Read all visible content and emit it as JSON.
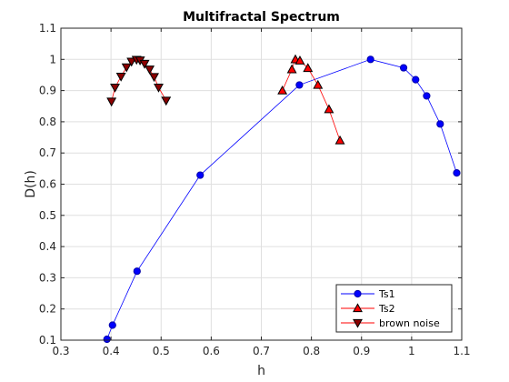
{
  "chart_data": {
    "type": "line",
    "title": "Multifractal Spectrum",
    "xlabel": "h",
    "ylabel": "D(h)",
    "xlim": [
      0.3,
      1.1
    ],
    "ylim": [
      0.1,
      1.1
    ],
    "xticks": [
      0.3,
      0.4,
      0.5,
      0.6,
      0.7,
      0.8,
      0.9,
      1.0,
      1.1
    ],
    "xtick_labels": [
      "0.3",
      "0.4",
      "0.5",
      "0.6",
      "0.7",
      "0.8",
      "0.9",
      "1",
      "1.1"
    ],
    "yticks": [
      0.1,
      0.2,
      0.3,
      0.4,
      0.5,
      0.6,
      0.7,
      0.8,
      0.9,
      1.0,
      1.1
    ],
    "ytick_labels": [
      "0.1",
      "0.2",
      "0.3",
      "0.4",
      "0.5",
      "0.6",
      "0.7",
      "0.8",
      "0.9",
      "1",
      "1.1"
    ],
    "grid": true,
    "legend_position": "bottom-right",
    "series": [
      {
        "name": "Ts1",
        "color": "#0000ff",
        "marker": "circle",
        "x": [
          0.392,
          0.403,
          0.452,
          0.578,
          0.776,
          0.918,
          0.984,
          1.008,
          1.03,
          1.057,
          1.09
        ],
        "y": [
          0.103,
          0.148,
          0.321,
          0.629,
          0.918,
          1.0,
          0.973,
          0.935,
          0.883,
          0.793,
          0.636
        ]
      },
      {
        "name": "Ts2",
        "color": "#ff0000",
        "marker": "triangle-up",
        "x": [
          0.742,
          0.761,
          0.768,
          0.777,
          0.793,
          0.813,
          0.835,
          0.857
        ],
        "y": [
          0.9,
          0.968,
          1.0,
          0.996,
          0.972,
          0.918,
          0.84,
          0.74
        ]
      },
      {
        "name": "brown noise",
        "color": "#ff0000",
        "marker_fill": "#8b0000",
        "marker": "triangle-down",
        "x": [
          0.401,
          0.408,
          0.42,
          0.431,
          0.441,
          0.451,
          0.458,
          0.467,
          0.477,
          0.486,
          0.495,
          0.51
        ],
        "y": [
          0.865,
          0.91,
          0.945,
          0.975,
          0.993,
          0.999,
          0.997,
          0.986,
          0.968,
          0.944,
          0.91,
          0.868
        ]
      }
    ]
  }
}
